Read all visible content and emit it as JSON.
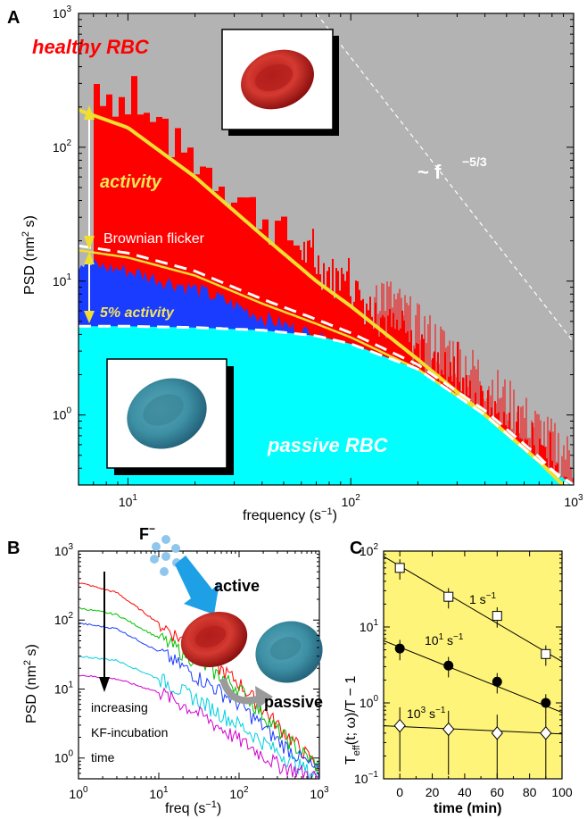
{
  "colors": {
    "grey": "#b3b3b3",
    "red": "#ff0000",
    "blue": "#1a3cff",
    "cyan": "#00ffff",
    "yellow": "#f5e65a",
    "yellowBg": "#fff47a",
    "cellRed": "#c0201e",
    "cellTeal": "#3d8fa3",
    "arrow": "#1ea0e6"
  },
  "panelA": {
    "letter": "A",
    "healthy_label": "healthy RBC",
    "passive_label": "passive RBC",
    "activity_label": "activity",
    "brownian_label": "Brownian flicker",
    "pct_label": "5% activity",
    "powerlaw_base": "~ f",
    "powerlaw_exp": "−5/3",
    "ylabel_main": "PSD (nm",
    "ylabel_sup": "2",
    "ylabel_tail": " s)",
    "xlabel": "frequency (s",
    "xlabel_sup": "−1",
    "xlabel_tail": ")",
    "xticks": [
      {
        "base": "10",
        "exp": "1"
      },
      {
        "base": "10",
        "exp": "2"
      },
      {
        "base": "10",
        "exp": "3"
      }
    ],
    "yticks": [
      {
        "base": "10",
        "exp": "0"
      },
      {
        "base": "10",
        "exp": "1"
      },
      {
        "base": "10",
        "exp": "2"
      },
      {
        "base": "10",
        "exp": "3"
      }
    ]
  },
  "panelB": {
    "letter": "B",
    "ion_label": "F",
    "ion_sup": "−",
    "active_label": "active",
    "passive_label": "passive",
    "note_lines": [
      "increasing",
      "KF-incubation",
      "time"
    ],
    "ylabel_main": "PSD (nm",
    "ylabel_sup": "2",
    "ylabel_tail": " s)",
    "xlabel": "freq (s",
    "xlabel_sup": "−1",
    "xlabel_tail": ")",
    "xticks": [
      {
        "base": "10",
        "exp": "0"
      },
      {
        "base": "10",
        "exp": "1"
      },
      {
        "base": "10",
        "exp": "2"
      },
      {
        "base": "10",
        "exp": "3"
      }
    ],
    "yticks": [
      {
        "base": "10",
        "exp": "0"
      },
      {
        "base": "10",
        "exp": "1"
      },
      {
        "base": "10",
        "exp": "2"
      },
      {
        "base": "10",
        "exp": "3"
      }
    ]
  },
  "panelC": {
    "letter": "C",
    "ylabel_pre": "T",
    "ylabel_sub": "eff",
    "ylabel_post": "(t; ω)/T − 1",
    "xlabel": "time (min)",
    "xticks": [
      "0",
      "20",
      "40",
      "60",
      "80",
      "100"
    ],
    "yticks": [
      {
        "base": "10",
        "exp": "−1"
      },
      {
        "base": "10",
        "exp": "0"
      },
      {
        "base": "10",
        "exp": "1"
      },
      {
        "base": "10",
        "exp": "2"
      }
    ],
    "series_labels": [
      {
        "base": "1 s",
        "exp": "−1"
      },
      {
        "base": "10",
        "mid": "1",
        "unit": " s",
        "exp": "−1"
      },
      {
        "base": "10",
        "mid": "3",
        "unit": " s",
        "exp": "−1"
      }
    ]
  },
  "chart_data": [
    {
      "panel": "A",
      "type": "area",
      "xscale": "log",
      "yscale": "log",
      "xlim": [
        6,
        1000
      ],
      "ylim": [
        0.3,
        1000
      ],
      "series": [
        {
          "name": "healthy RBC",
          "x": [
            7,
            10,
            20,
            40,
            70,
            100,
            200,
            400,
            700,
            1000
          ],
          "y": [
            300,
            200,
            80,
            30,
            14,
            9,
            3,
            1.2,
            0.5,
            0.3
          ]
        },
        {
          "name": "passive RBC",
          "x": [
            7,
            10,
            20,
            40,
            70,
            100,
            200,
            400,
            700,
            1000
          ],
          "y": [
            4.6,
            4.6,
            4.5,
            4.3,
            3.9,
            3.4,
            2.2,
            1.0,
            0.45,
            0.3
          ]
        }
      ],
      "fits": [
        {
          "x": [
            6,
            10,
            20,
            40,
            70,
            100,
            200,
            400,
            700,
            1000
          ],
          "y": [
            190,
            140,
            60,
            22,
            10,
            6.5,
            2.6,
            1.0,
            0.45,
            0.25
          ]
        },
        {
          "x": [
            6,
            10,
            20,
            40,
            70,
            100,
            200,
            400,
            700,
            1000
          ],
          "y": [
            17,
            15,
            11,
            6.8,
            4.8,
            3.8,
            2.2,
            1.0,
            0.45,
            0.25
          ]
        }
      ],
      "powerlaw": {
        "x": [
          70,
          1000
        ],
        "y": [
          1000,
          3.5
        ]
      }
    },
    {
      "panel": "B",
      "type": "line",
      "xscale": "log",
      "yscale": "log",
      "xlim": [
        1,
        1000
      ],
      "ylim": [
        0.5,
        1000
      ],
      "series": [
        {
          "color": "#ff0000",
          "x": [
            1,
            3,
            10,
            30,
            100,
            300,
            1000
          ],
          "y": [
            350,
            250,
            90,
            35,
            12,
            3,
            0.7
          ]
        },
        {
          "color": "#00c000",
          "x": [
            1,
            3,
            10,
            30,
            100,
            300,
            1000
          ],
          "y": [
            150,
            120,
            55,
            25,
            10,
            2.5,
            0.7
          ]
        },
        {
          "color": "#1a3cff",
          "x": [
            1,
            3,
            10,
            30,
            100,
            300,
            1000
          ],
          "y": [
            90,
            75,
            35,
            15,
            6,
            1.8,
            0.6
          ]
        },
        {
          "color": "#00d0e0",
          "x": [
            1,
            3,
            10,
            30,
            100,
            300,
            1000
          ],
          "y": [
            30,
            26,
            14,
            7,
            3,
            1.2,
            0.5
          ]
        },
        {
          "color": "#d000d0",
          "x": [
            1,
            3,
            10,
            30,
            100,
            300,
            1000
          ],
          "y": [
            16,
            14,
            9,
            4.5,
            1.8,
            0.8,
            0.5
          ]
        }
      ]
    },
    {
      "panel": "C",
      "type": "scatter",
      "yscale": "log",
      "xlim": [
        -10,
        100
      ],
      "ylim": [
        0.1,
        100
      ],
      "series": [
        {
          "marker": "square",
          "x": [
            0,
            30,
            60,
            90
          ],
          "y": [
            60,
            25,
            14,
            4.4
          ],
          "fit": [
            [
              -10,
              85
            ],
            [
              100,
              3.5
            ]
          ]
        },
        {
          "marker": "circle",
          "x": [
            0,
            30,
            60,
            90
          ],
          "y": [
            5.2,
            3.1,
            1.9,
            1.0
          ],
          "fit": [
            [
              -10,
              6.6
            ],
            [
              100,
              0.75
            ]
          ]
        },
        {
          "marker": "diamond",
          "x": [
            0,
            30,
            60,
            90
          ],
          "y": [
            0.5,
            0.45,
            0.4,
            0.4
          ],
          "fit": [
            [
              -10,
              0.5
            ],
            [
              100,
              0.39
            ]
          ]
        }
      ]
    }
  ]
}
